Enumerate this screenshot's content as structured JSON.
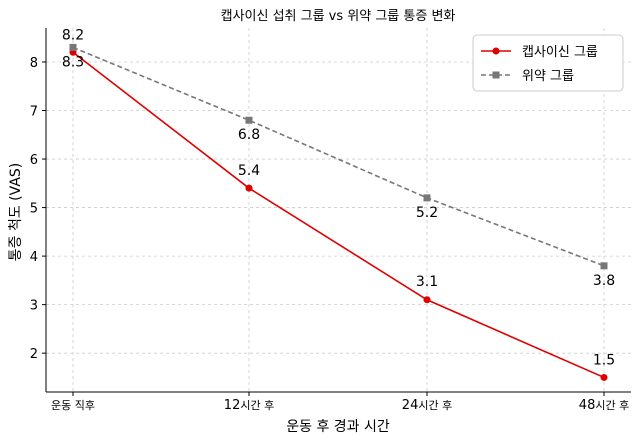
{
  "chart_data": {
    "type": "line",
    "title": "캡사이신 섭취 그룹 vs 위약 그룹 통증 변화",
    "xlabel": "운동 후 경과 시간",
    "ylabel": "통증 척도 (VAS)",
    "categories": [
      {
        "num": "",
        "text": "운동 직후"
      },
      {
        "num": "12",
        "text": "시간 후"
      },
      {
        "num": "24",
        "text": "시간 후"
      },
      {
        "num": "48",
        "text": "시간 후"
      }
    ],
    "yticks": [
      "2",
      "3",
      "4",
      "5",
      "6",
      "7",
      "8"
    ],
    "ylim": [
      1.2,
      8.7
    ],
    "grid": true,
    "legend_position": "top-right",
    "series": [
      {
        "name": "캡사이신 그룹",
        "values": [
          8.2,
          5.4,
          3.1,
          1.5
        ],
        "labels": [
          "8.2",
          "5.4",
          "3.1",
          "1.5"
        ],
        "color": "#e00000",
        "marker": "circle",
        "style": "solid"
      },
      {
        "name": "위약 그룹",
        "values": [
          8.3,
          6.8,
          5.2,
          3.8
        ],
        "labels": [
          "8.3",
          "6.8",
          "5.2",
          "3.8"
        ],
        "color": "#777777",
        "marker": "square",
        "style": "dashed"
      }
    ]
  }
}
